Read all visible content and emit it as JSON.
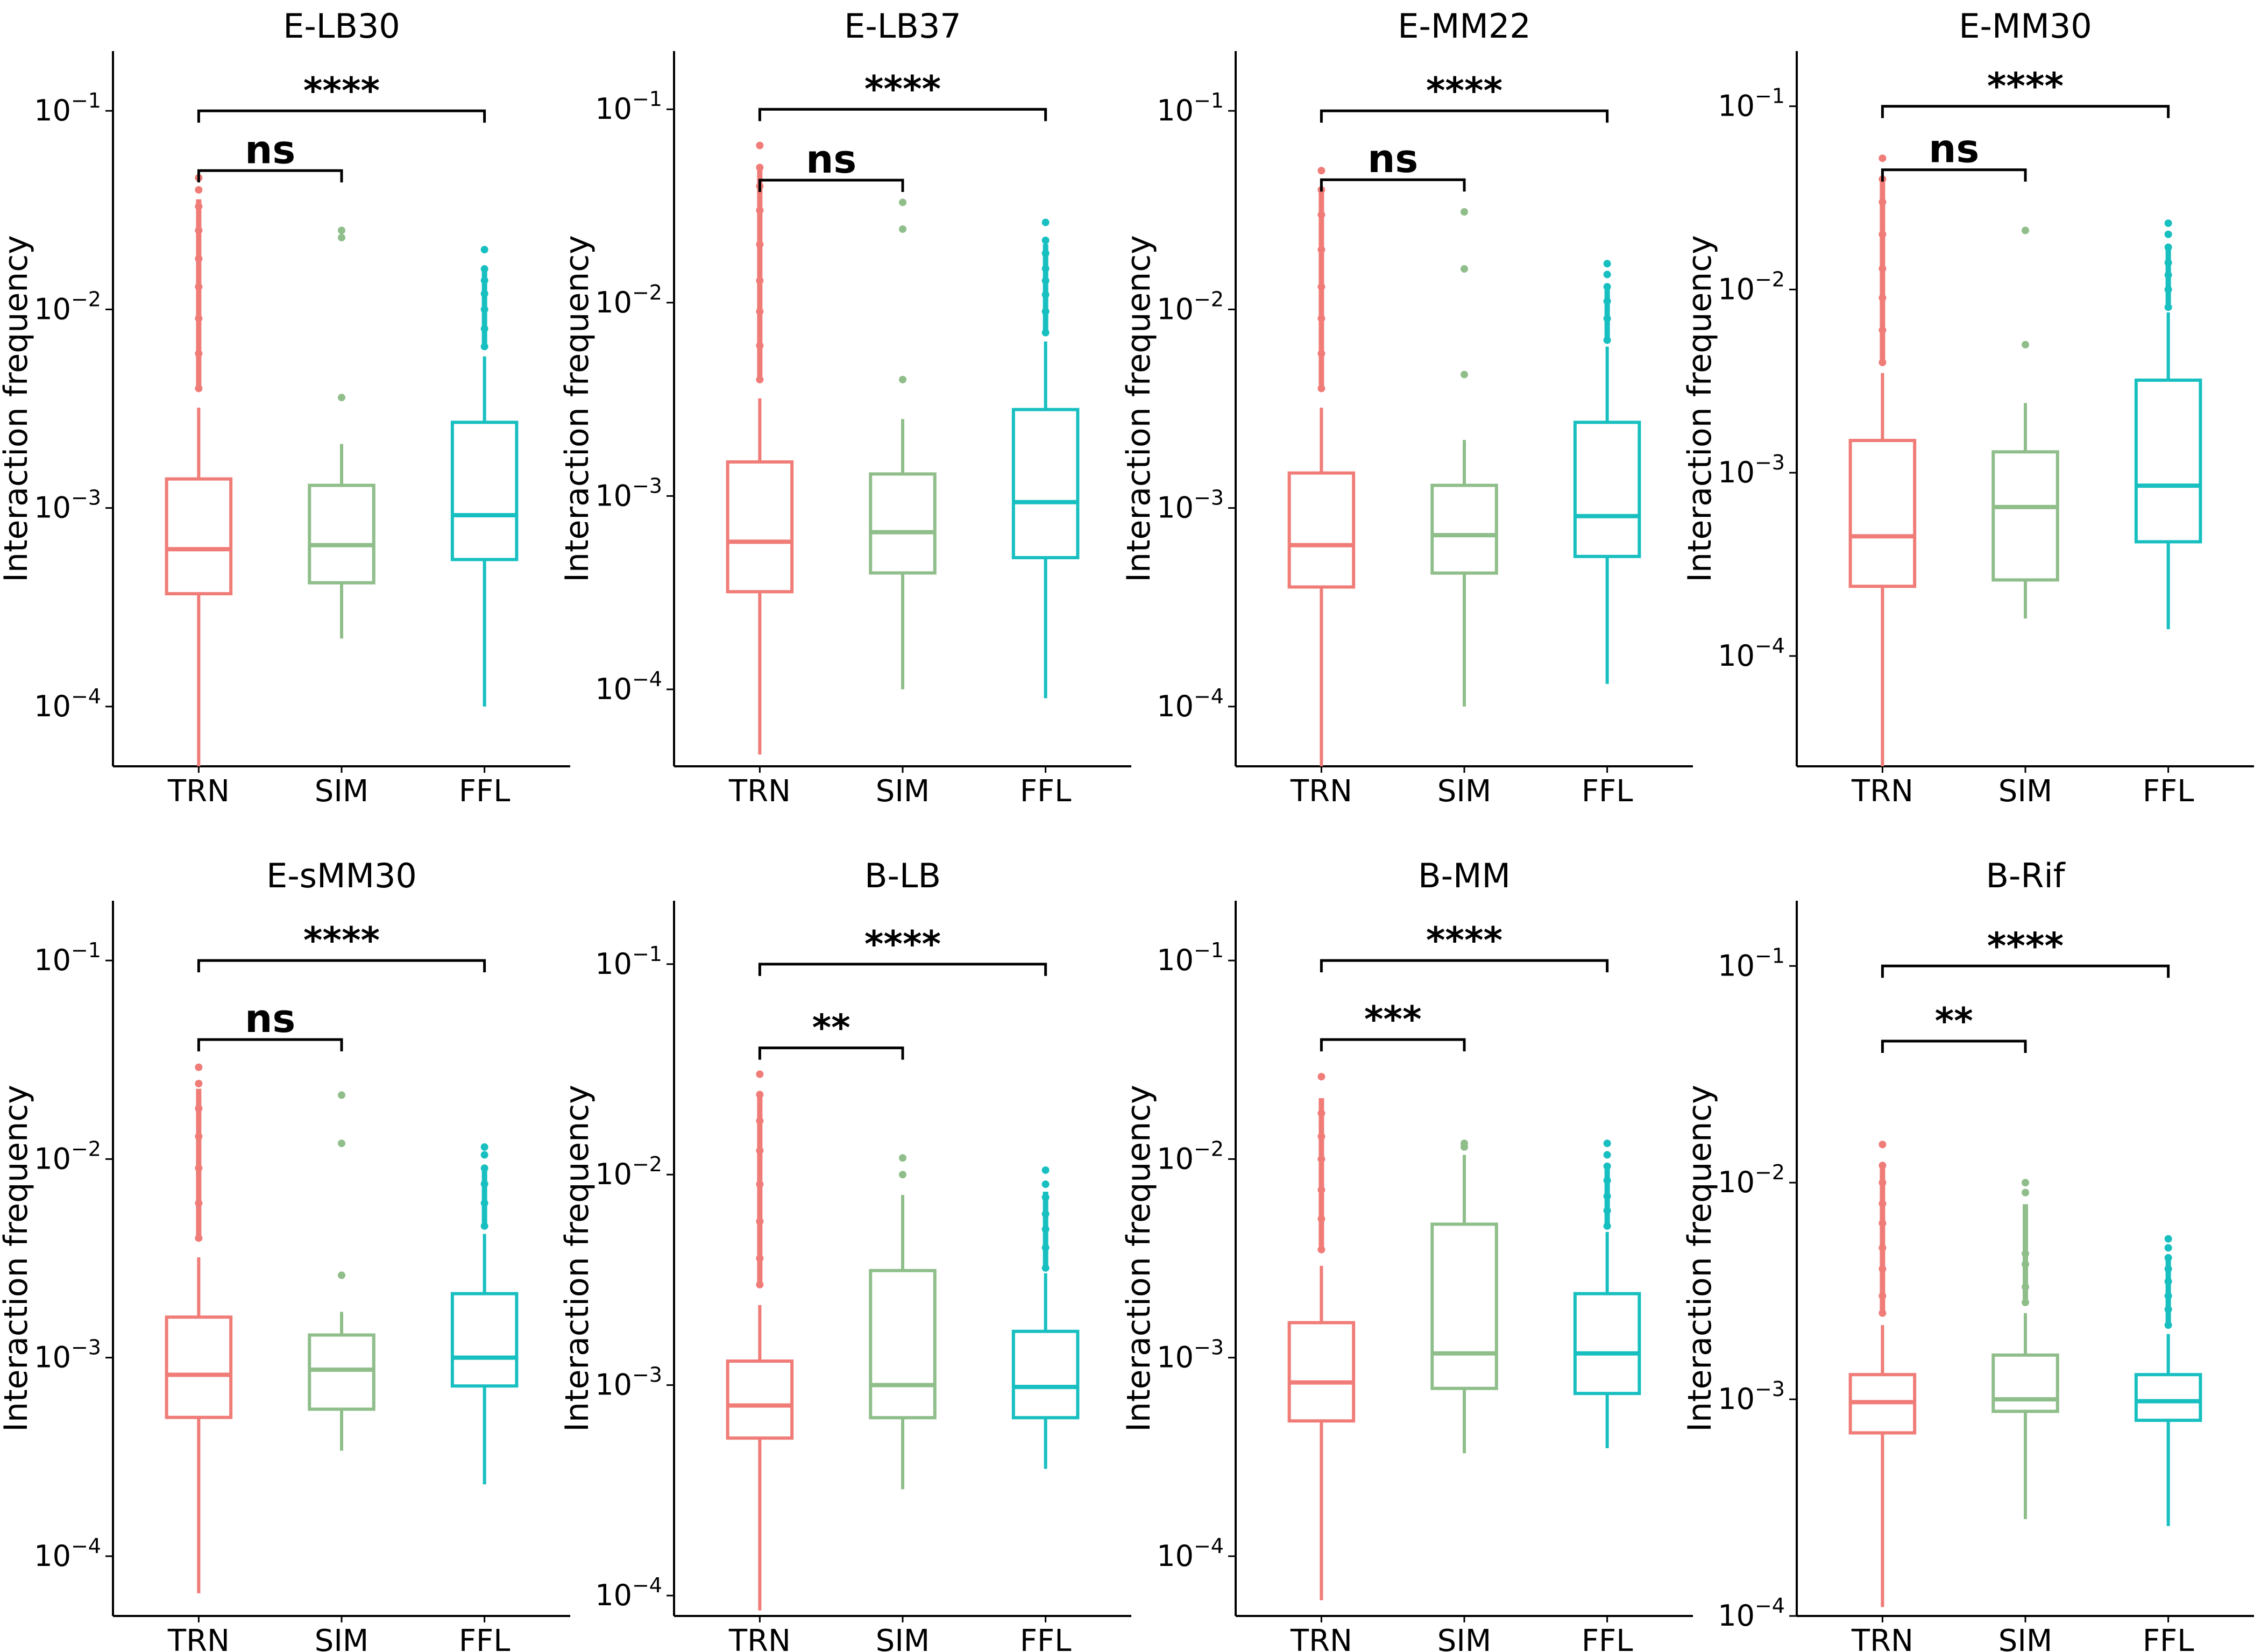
{
  "chart_data": [
    {
      "type": "box",
      "title": "E-LB30",
      "ylabel": "Interaction frequency",
      "yscale": "log",
      "ylim": [
        5e-05,
        0.2
      ],
      "yticks": [
        {
          "value": 0.0001,
          "mantissa": "10",
          "exp": "−4"
        },
        {
          "value": 0.001,
          "mantissa": "10",
          "exp": "−3"
        },
        {
          "value": 0.01,
          "mantissa": "10",
          "exp": "−2"
        },
        {
          "value": 0.1,
          "mantissa": "10",
          "exp": "−1"
        }
      ],
      "categories": [
        "TRN",
        "SIM",
        "FFL"
      ],
      "boxes": [
        {
          "category": "TRN",
          "color": "#F07C78",
          "min": 5e-05,
          "q1": 0.00037,
          "median": 0.00062,
          "q3": 0.0014,
          "max": 0.0032,
          "outliers": [
            0.004,
            0.006,
            0.009,
            0.013,
            0.018,
            0.025,
            0.033,
            0.04,
            0.046
          ]
        },
        {
          "category": "SIM",
          "color": "#8FBE8A",
          "min": 0.00022,
          "q1": 0.00042,
          "median": 0.00065,
          "q3": 0.0013,
          "max": 0.0021,
          "outliers": [
            0.0036,
            0.023,
            0.025
          ]
        },
        {
          "category": "FFL",
          "color": "#18BFC0",
          "min": 0.0001,
          "q1": 0.00055,
          "median": 0.00092,
          "q3": 0.0027,
          "max": 0.0058,
          "outliers": [
            0.0065,
            0.008,
            0.01,
            0.012,
            0.014,
            0.016,
            0.02
          ]
        }
      ],
      "comparisons": [
        {
          "from": "TRN",
          "to": "SIM",
          "label": "ns",
          "y": 0.05
        },
        {
          "from": "TRN",
          "to": "FFL",
          "label": "****",
          "y": 0.1
        }
      ]
    },
    {
      "type": "box",
      "title": "E-LB37",
      "ylabel": "Interaction frequency",
      "yscale": "log",
      "ylim": [
        4e-05,
        0.2
      ],
      "yticks": [
        {
          "value": 0.0001,
          "mantissa": "10",
          "exp": "−4"
        },
        {
          "value": 0.001,
          "mantissa": "10",
          "exp": "−3"
        },
        {
          "value": 0.01,
          "mantissa": "10",
          "exp": "−2"
        },
        {
          "value": 0.1,
          "mantissa": "10",
          "exp": "−1"
        }
      ],
      "categories": [
        "TRN",
        "SIM",
        "FFL"
      ],
      "boxes": [
        {
          "category": "TRN",
          "color": "#F07C78",
          "min": 4.6e-05,
          "q1": 0.00032,
          "median": 0.00058,
          "q3": 0.0015,
          "max": 0.0032,
          "outliers": [
            0.004,
            0.006,
            0.009,
            0.013,
            0.02,
            0.03,
            0.04,
            0.05,
            0.065
          ]
        },
        {
          "category": "SIM",
          "color": "#8FBE8A",
          "min": 0.0001,
          "q1": 0.0004,
          "median": 0.00065,
          "q3": 0.0013,
          "max": 0.0025,
          "outliers": [
            0.004,
            0.024,
            0.033
          ]
        },
        {
          "category": "FFL",
          "color": "#18BFC0",
          "min": 9e-05,
          "q1": 0.00048,
          "median": 0.00093,
          "q3": 0.0028,
          "max": 0.0063,
          "outliers": [
            0.007,
            0.009,
            0.011,
            0.013,
            0.015,
            0.018,
            0.021,
            0.026
          ]
        }
      ],
      "comparisons": [
        {
          "from": "TRN",
          "to": "SIM",
          "label": "ns",
          "y": 0.043
        },
        {
          "from": "TRN",
          "to": "FFL",
          "label": "****",
          "y": 0.1
        }
      ]
    },
    {
      "type": "box",
      "title": "E-MM22",
      "ylabel": "Interaction frequency",
      "yscale": "log",
      "ylim": [
        5e-05,
        0.2
      ],
      "yticks": [
        {
          "value": 0.0001,
          "mantissa": "10",
          "exp": "−4"
        },
        {
          "value": 0.001,
          "mantissa": "10",
          "exp": "−3"
        },
        {
          "value": 0.01,
          "mantissa": "10",
          "exp": "−2"
        },
        {
          "value": 0.1,
          "mantissa": "10",
          "exp": "−1"
        }
      ],
      "categories": [
        "TRN",
        "SIM",
        "FFL"
      ],
      "boxes": [
        {
          "category": "TRN",
          "color": "#F07C78",
          "min": 5e-05,
          "q1": 0.0004,
          "median": 0.00065,
          "q3": 0.0015,
          "max": 0.0032,
          "outliers": [
            0.004,
            0.006,
            0.009,
            0.013,
            0.02,
            0.03,
            0.04,
            0.05
          ]
        },
        {
          "category": "SIM",
          "color": "#8FBE8A",
          "min": 0.0001,
          "q1": 0.00047,
          "median": 0.00073,
          "q3": 0.0013,
          "max": 0.0022,
          "outliers": [
            0.0047,
            0.016,
            0.031
          ]
        },
        {
          "category": "FFL",
          "color": "#18BFC0",
          "min": 0.00013,
          "q1": 0.00057,
          "median": 0.00091,
          "q3": 0.0027,
          "max": 0.0065,
          "outliers": [
            0.007,
            0.009,
            0.011,
            0.013,
            0.015,
            0.017
          ]
        }
      ],
      "comparisons": [
        {
          "from": "TRN",
          "to": "SIM",
          "label": "ns",
          "y": 0.045
        },
        {
          "from": "TRN",
          "to": "FFL",
          "label": "****",
          "y": 0.1
        }
      ]
    },
    {
      "type": "box",
      "title": "E-MM30",
      "ylabel": "Interaction frequency",
      "yscale": "log",
      "ylim": [
        2.5e-05,
        0.2
      ],
      "yticks": [
        {
          "value": 0.0001,
          "mantissa": "10",
          "exp": "−4"
        },
        {
          "value": 0.001,
          "mantissa": "10",
          "exp": "−3"
        },
        {
          "value": 0.01,
          "mantissa": "10",
          "exp": "−2"
        },
        {
          "value": 0.1,
          "mantissa": "10",
          "exp": "−1"
        }
      ],
      "categories": [
        "TRN",
        "SIM",
        "FFL"
      ],
      "boxes": [
        {
          "category": "TRN",
          "color": "#F07C78",
          "min": 2.5e-05,
          "q1": 0.00024,
          "median": 0.00045,
          "q3": 0.0015,
          "max": 0.0035,
          "outliers": [
            0.004,
            0.006,
            0.009,
            0.013,
            0.02,
            0.03,
            0.04,
            0.052
          ]
        },
        {
          "category": "SIM",
          "color": "#8FBE8A",
          "min": 0.00016,
          "q1": 0.00026,
          "median": 0.00065,
          "q3": 0.0013,
          "max": 0.0024,
          "outliers": [
            0.005,
            0.021
          ]
        },
        {
          "category": "FFL",
          "color": "#18BFC0",
          "min": 0.00014,
          "q1": 0.00042,
          "median": 0.00085,
          "q3": 0.0032,
          "max": 0.0075,
          "outliers": [
            0.008,
            0.01,
            0.012,
            0.014,
            0.017,
            0.02,
            0.023
          ]
        }
      ],
      "comparisons": [
        {
          "from": "TRN",
          "to": "SIM",
          "label": "ns",
          "y": 0.045
        },
        {
          "from": "TRN",
          "to": "FFL",
          "label": "****",
          "y": 0.1
        }
      ]
    },
    {
      "type": "box",
      "title": "E-sMM30",
      "ylabel": "Interaction frequency",
      "yscale": "log",
      "ylim": [
        5e-05,
        0.2
      ],
      "yticks": [
        {
          "value": 0.0001,
          "mantissa": "10",
          "exp": "−4"
        },
        {
          "value": 0.001,
          "mantissa": "10",
          "exp": "−3"
        },
        {
          "value": 0.01,
          "mantissa": "10",
          "exp": "−2"
        },
        {
          "value": 0.1,
          "mantissa": "10",
          "exp": "−1"
        }
      ],
      "categories": [
        "TRN",
        "SIM",
        "FFL"
      ],
      "boxes": [
        {
          "category": "TRN",
          "color": "#F07C78",
          "min": 6.5e-05,
          "q1": 0.0005,
          "median": 0.00082,
          "q3": 0.0016,
          "max": 0.0032,
          "outliers": [
            0.004,
            0.006,
            0.009,
            0.013,
            0.018,
            0.024,
            0.029
          ]
        },
        {
          "category": "SIM",
          "color": "#8FBE8A",
          "min": 0.00034,
          "q1": 0.00055,
          "median": 0.00087,
          "q3": 0.0013,
          "max": 0.0017,
          "outliers": [
            0.0026,
            0.012,
            0.021
          ]
        },
        {
          "category": "FFL",
          "color": "#18BFC0",
          "min": 0.00023,
          "q1": 0.00072,
          "median": 0.001,
          "q3": 0.0021,
          "max": 0.0042,
          "outliers": [
            0.0046,
            0.006,
            0.0075,
            0.009,
            0.0105,
            0.0115
          ]
        }
      ],
      "comparisons": [
        {
          "from": "TRN",
          "to": "SIM",
          "label": "ns",
          "y": 0.04
        },
        {
          "from": "TRN",
          "to": "FFL",
          "label": "****",
          "y": 0.1
        }
      ]
    },
    {
      "type": "box",
      "title": "B-LB",
      "ylabel": "Interaction frequency",
      "yscale": "log",
      "ylim": [
        8e-05,
        0.2
      ],
      "yticks": [
        {
          "value": 0.0001,
          "mantissa": "10",
          "exp": "−4"
        },
        {
          "value": 0.001,
          "mantissa": "10",
          "exp": "−3"
        },
        {
          "value": 0.01,
          "mantissa": "10",
          "exp": "−2"
        },
        {
          "value": 0.1,
          "mantissa": "10",
          "exp": "−1"
        }
      ],
      "categories": [
        "TRN",
        "SIM",
        "FFL"
      ],
      "boxes": [
        {
          "category": "TRN",
          "color": "#F07C78",
          "min": 8.5e-05,
          "q1": 0.00056,
          "median": 0.0008,
          "q3": 0.0013,
          "max": 0.0024,
          "outliers": [
            0.003,
            0.004,
            0.006,
            0.009,
            0.013,
            0.018,
            0.024,
            0.03
          ]
        },
        {
          "category": "SIM",
          "color": "#8FBE8A",
          "min": 0.00032,
          "q1": 0.0007,
          "median": 0.001,
          "q3": 0.0035,
          "max": 0.008,
          "outliers": [
            0.01,
            0.012
          ]
        },
        {
          "category": "FFL",
          "color": "#18BFC0",
          "min": 0.0004,
          "q1": 0.0007,
          "median": 0.00098,
          "q3": 0.0018,
          "max": 0.0034,
          "outliers": [
            0.0036,
            0.0045,
            0.0055,
            0.0065,
            0.0078,
            0.009,
            0.0105
          ]
        }
      ],
      "comparisons": [
        {
          "from": "TRN",
          "to": "SIM",
          "label": "**",
          "y": 0.04
        },
        {
          "from": "TRN",
          "to": "FFL",
          "label": "****",
          "y": 0.1
        }
      ]
    },
    {
      "type": "box",
      "title": "B-MM",
      "ylabel": "Interaction frequency",
      "yscale": "log",
      "ylim": [
        5e-05,
        0.2
      ],
      "yticks": [
        {
          "value": 0.0001,
          "mantissa": "10",
          "exp": "−4"
        },
        {
          "value": 0.001,
          "mantissa": "10",
          "exp": "−3"
        },
        {
          "value": 0.01,
          "mantissa": "10",
          "exp": "−2"
        },
        {
          "value": 0.1,
          "mantissa": "10",
          "exp": "−1"
        }
      ],
      "categories": [
        "TRN",
        "SIM",
        "FFL"
      ],
      "boxes": [
        {
          "category": "TRN",
          "color": "#F07C78",
          "min": 6e-05,
          "q1": 0.00048,
          "median": 0.00075,
          "q3": 0.0015,
          "max": 0.0029,
          "outliers": [
            0.0035,
            0.005,
            0.007,
            0.01,
            0.013,
            0.017,
            0.026
          ]
        },
        {
          "category": "SIM",
          "color": "#8FBE8A",
          "min": 0.00033,
          "q1": 0.0007,
          "median": 0.00105,
          "q3": 0.0047,
          "max": 0.0105,
          "outliers": [
            0.0115,
            0.012
          ]
        },
        {
          "category": "FFL",
          "color": "#18BFC0",
          "min": 0.00035,
          "q1": 0.00066,
          "median": 0.00105,
          "q3": 0.0021,
          "max": 0.0043,
          "outliers": [
            0.0046,
            0.0055,
            0.0065,
            0.0078,
            0.0092,
            0.0105,
            0.012
          ]
        }
      ],
      "comparisons": [
        {
          "from": "TRN",
          "to": "SIM",
          "label": "***",
          "y": 0.04
        },
        {
          "from": "TRN",
          "to": "FFL",
          "label": "****",
          "y": 0.1
        }
      ]
    },
    {
      "type": "box",
      "title": "B-Rif",
      "ylabel": "Interaction frequency",
      "yscale": "log",
      "ylim": [
        0.0001,
        0.2
      ],
      "yticks": [
        {
          "value": 0.0001,
          "mantissa": "10",
          "exp": "−4"
        },
        {
          "value": 0.001,
          "mantissa": "10",
          "exp": "−3"
        },
        {
          "value": 0.01,
          "mantissa": "10",
          "exp": "−2"
        },
        {
          "value": 0.1,
          "mantissa": "10",
          "exp": "−1"
        }
      ],
      "categories": [
        "TRN",
        "SIM",
        "FFL"
      ],
      "boxes": [
        {
          "category": "TRN",
          "color": "#F07C78",
          "min": 0.00011,
          "q1": 0.0007,
          "median": 0.00097,
          "q3": 0.0013,
          "max": 0.0022,
          "outliers": [
            0.0025,
            0.003,
            0.004,
            0.005,
            0.0065,
            0.008,
            0.01,
            0.012,
            0.015
          ]
        },
        {
          "category": "SIM",
          "color": "#8FBE8A",
          "min": 0.00028,
          "q1": 0.00088,
          "median": 0.001,
          "q3": 0.0016,
          "max": 0.0025,
          "outliers": [
            0.0028,
            0.0033,
            0.0042,
            0.0047,
            0.009,
            0.01
          ]
        },
        {
          "category": "FFL",
          "color": "#18BFC0",
          "min": 0.00026,
          "q1": 0.0008,
          "median": 0.00098,
          "q3": 0.0013,
          "max": 0.002,
          "outliers": [
            0.0022,
            0.0026,
            0.003,
            0.0035,
            0.004,
            0.0045,
            0.005,
            0.0055
          ]
        }
      ],
      "comparisons": [
        {
          "from": "TRN",
          "to": "SIM",
          "label": "**",
          "y": 0.045
        },
        {
          "from": "TRN",
          "to": "FFL",
          "label": "****",
          "y": 0.1
        }
      ]
    }
  ]
}
